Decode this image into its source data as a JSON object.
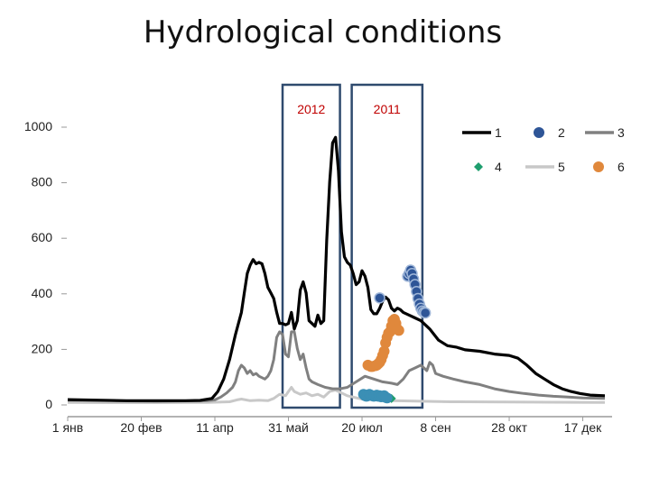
{
  "title": "Hydrological conditions",
  "chart_data": {
    "type": "line",
    "title": "Hydrological conditions",
    "xlabel": "",
    "ylabel": "",
    "x_domain_days": [
      0,
      365
    ],
    "ylim": [
      0,
      1000
    ],
    "y_ticks": [
      0,
      200,
      400,
      600,
      800,
      1000
    ],
    "x_ticks": [
      {
        "day": 0,
        "label": "1 янв"
      },
      {
        "day": 50,
        "label": "20 фев"
      },
      {
        "day": 100,
        "label": "11 апр"
      },
      {
        "day": 150,
        "label": "31 май"
      },
      {
        "day": 200,
        "label": "20 июл"
      },
      {
        "day": 250,
        "label": "8 сен"
      },
      {
        "day": 300,
        "label": "28 окт"
      },
      {
        "day": 350,
        "label": "17 дек"
      }
    ],
    "highlight_boxes": [
      {
        "label": "2012",
        "x_start": 146,
        "x_end": 185
      },
      {
        "label": "2011",
        "x_start": 193,
        "x_end": 241
      }
    ],
    "legend_position": "top-right",
    "series": [
      {
        "name": "1",
        "kind": "line",
        "color": "#000000",
        "points": [
          [
            0,
            16
          ],
          [
            20,
            14
          ],
          [
            40,
            12
          ],
          [
            60,
            12
          ],
          [
            80,
            12
          ],
          [
            90,
            13
          ],
          [
            98,
            20
          ],
          [
            102,
            45
          ],
          [
            106,
            90
          ],
          [
            110,
            160
          ],
          [
            114,
            250
          ],
          [
            118,
            330
          ],
          [
            120,
            400
          ],
          [
            122,
            470
          ],
          [
            124,
            500
          ],
          [
            126,
            520
          ],
          [
            128,
            505
          ],
          [
            130,
            510
          ],
          [
            132,
            505
          ],
          [
            134,
            470
          ],
          [
            136,
            420
          ],
          [
            138,
            400
          ],
          [
            140,
            380
          ],
          [
            142,
            330
          ],
          [
            144,
            290
          ],
          [
            146,
            290
          ],
          [
            148,
            285
          ],
          [
            150,
            290
          ],
          [
            152,
            330
          ],
          [
            154,
            270
          ],
          [
            156,
            300
          ],
          [
            158,
            410
          ],
          [
            160,
            440
          ],
          [
            162,
            400
          ],
          [
            164,
            300
          ],
          [
            166,
            290
          ],
          [
            168,
            280
          ],
          [
            170,
            320
          ],
          [
            172,
            290
          ],
          [
            174,
            300
          ],
          [
            176,
            590
          ],
          [
            178,
            800
          ],
          [
            180,
            940
          ],
          [
            182,
            960
          ],
          [
            184,
            840
          ],
          [
            186,
            620
          ],
          [
            188,
            530
          ],
          [
            190,
            510
          ],
          [
            192,
            500
          ],
          [
            194,
            470
          ],
          [
            196,
            430
          ],
          [
            198,
            440
          ],
          [
            200,
            480
          ],
          [
            202,
            460
          ],
          [
            204,
            420
          ],
          [
            206,
            340
          ],
          [
            208,
            325
          ],
          [
            210,
            325
          ],
          [
            212,
            345
          ],
          [
            214,
            370
          ],
          [
            216,
            385
          ],
          [
            218,
            375
          ],
          [
            220,
            345
          ],
          [
            222,
            335
          ],
          [
            224,
            345
          ],
          [
            226,
            340
          ],
          [
            228,
            330
          ],
          [
            232,
            320
          ],
          [
            236,
            310
          ],
          [
            240,
            300
          ],
          [
            246,
            270
          ],
          [
            252,
            230
          ],
          [
            258,
            210
          ],
          [
            264,
            205
          ],
          [
            270,
            195
          ],
          [
            280,
            190
          ],
          [
            290,
            180
          ],
          [
            300,
            175
          ],
          [
            306,
            165
          ],
          [
            312,
            140
          ],
          [
            318,
            110
          ],
          [
            324,
            90
          ],
          [
            330,
            70
          ],
          [
            336,
            55
          ],
          [
            342,
            45
          ],
          [
            348,
            38
          ],
          [
            355,
            32
          ],
          [
            365,
            30
          ]
        ]
      },
      {
        "name": "2",
        "kind": "scatter",
        "color": "#2e5597",
        "points": [
          [
            212,
            382
          ],
          [
            231,
            460
          ],
          [
            232,
            470
          ],
          [
            233,
            482
          ],
          [
            234,
            470
          ],
          [
            235,
            450
          ],
          [
            236,
            430
          ],
          [
            237,
            405
          ],
          [
            238,
            380
          ],
          [
            239,
            360
          ],
          [
            240,
            345
          ],
          [
            241,
            335
          ],
          [
            242,
            330
          ],
          [
            243,
            328
          ]
        ]
      },
      {
        "name": "3",
        "kind": "line",
        "color": "#808080",
        "points": [
          [
            0,
            14
          ],
          [
            30,
            12
          ],
          [
            60,
            10
          ],
          [
            95,
            12
          ],
          [
            100,
            15
          ],
          [
            104,
            25
          ],
          [
            108,
            40
          ],
          [
            112,
            60
          ],
          [
            114,
            80
          ],
          [
            116,
            120
          ],
          [
            118,
            140
          ],
          [
            120,
            130
          ],
          [
            122,
            110
          ],
          [
            124,
            120
          ],
          [
            126,
            105
          ],
          [
            128,
            110
          ],
          [
            130,
            100
          ],
          [
            134,
            90
          ],
          [
            136,
            100
          ],
          [
            138,
            120
          ],
          [
            140,
            160
          ],
          [
            142,
            240
          ],
          [
            144,
            260
          ],
          [
            146,
            250
          ],
          [
            148,
            180
          ],
          [
            150,
            170
          ],
          [
            152,
            260
          ],
          [
            154,
            260
          ],
          [
            156,
            200
          ],
          [
            158,
            160
          ],
          [
            160,
            180
          ],
          [
            162,
            130
          ],
          [
            164,
            90
          ],
          [
            166,
            80
          ],
          [
            170,
            70
          ],
          [
            175,
            60
          ],
          [
            180,
            55
          ],
          [
            185,
            55
          ],
          [
            190,
            60
          ],
          [
            196,
            80
          ],
          [
            202,
            100
          ],
          [
            208,
            90
          ],
          [
            214,
            80
          ],
          [
            220,
            75
          ],
          [
            224,
            70
          ],
          [
            228,
            90
          ],
          [
            232,
            120
          ],
          [
            236,
            130
          ],
          [
            240,
            140
          ],
          [
            244,
            120
          ],
          [
            246,
            150
          ],
          [
            248,
            140
          ],
          [
            250,
            110
          ],
          [
            255,
            100
          ],
          [
            262,
            90
          ],
          [
            270,
            80
          ],
          [
            280,
            70
          ],
          [
            290,
            55
          ],
          [
            300,
            45
          ],
          [
            310,
            38
          ],
          [
            320,
            32
          ],
          [
            330,
            28
          ],
          [
            340,
            25
          ],
          [
            350,
            22
          ],
          [
            365,
            20
          ]
        ]
      },
      {
        "name": "4",
        "kind": "scatter",
        "color": "#1e9e6e",
        "points": [
          [
            220,
            20
          ]
        ]
      },
      {
        "name": "5",
        "kind": "line",
        "color": "#c8c8c8",
        "points": [
          [
            0,
            6
          ],
          [
            30,
            5
          ],
          [
            60,
            5
          ],
          [
            95,
            6
          ],
          [
            110,
            8
          ],
          [
            115,
            15
          ],
          [
            118,
            18
          ],
          [
            124,
            12
          ],
          [
            130,
            14
          ],
          [
            136,
            12
          ],
          [
            140,
            20
          ],
          [
            144,
            35
          ],
          [
            148,
            30
          ],
          [
            150,
            45
          ],
          [
            152,
            60
          ],
          [
            154,
            45
          ],
          [
            158,
            35
          ],
          [
            162,
            40
          ],
          [
            166,
            30
          ],
          [
            170,
            35
          ],
          [
            174,
            25
          ],
          [
            178,
            45
          ],
          [
            182,
            50
          ],
          [
            186,
            40
          ],
          [
            190,
            30
          ],
          [
            194,
            25
          ],
          [
            200,
            18
          ],
          [
            208,
            15
          ],
          [
            220,
            12
          ],
          [
            240,
            10
          ],
          [
            260,
            8
          ],
          [
            300,
            7
          ],
          [
            365,
            6
          ]
        ]
      },
      {
        "name": "6",
        "kind": "scatter",
        "color": "#e0883c",
        "points": [
          [
            204,
            140
          ],
          [
            206,
            135
          ],
          [
            207,
            135
          ],
          [
            209,
            138
          ],
          [
            210,
            140
          ],
          [
            211,
            145
          ],
          [
            212,
            150
          ],
          [
            213,
            160
          ],
          [
            214,
            175
          ],
          [
            215,
            190
          ],
          [
            216,
            220
          ],
          [
            217,
            240
          ],
          [
            218,
            255
          ],
          [
            219,
            260
          ],
          [
            220,
            280
          ],
          [
            221,
            300
          ],
          [
            222,
            305
          ],
          [
            223,
            290
          ],
          [
            224,
            270
          ],
          [
            225,
            265
          ]
        ]
      },
      {
        "name": "",
        "kind": "scatter",
        "color": "#3b8fb5",
        "points": [
          [
            201,
            35
          ],
          [
            202,
            30
          ],
          [
            203,
            28
          ],
          [
            204,
            30
          ],
          [
            205,
            35
          ],
          [
            206,
            32
          ],
          [
            207,
            30
          ],
          [
            208,
            28
          ],
          [
            209,
            30
          ],
          [
            210,
            32
          ],
          [
            211,
            28
          ],
          [
            212,
            30
          ],
          [
            213,
            26
          ],
          [
            214,
            28
          ],
          [
            215,
            30
          ],
          [
            216,
            24
          ],
          [
            217,
            22
          ]
        ]
      }
    ]
  }
}
